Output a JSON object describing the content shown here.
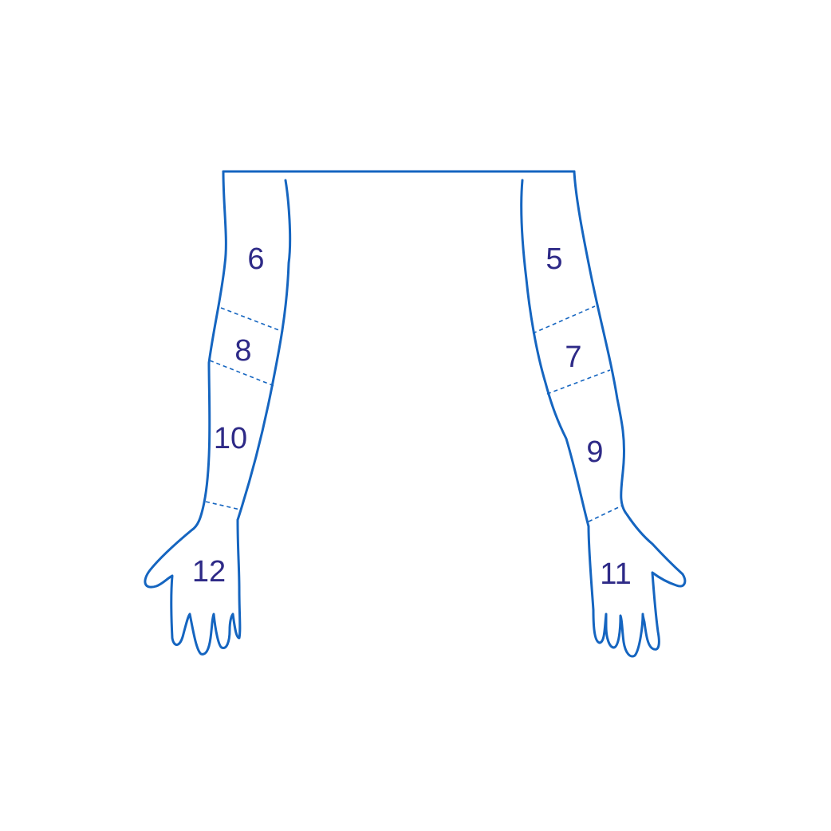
{
  "colors": {
    "outline": "#1565c0",
    "label": "#2e2a87",
    "background": "#ffffff"
  },
  "regions": {
    "r5": "5",
    "r6": "6",
    "r7": "7",
    "r8": "8",
    "r9": "9",
    "r10": "10",
    "r11": "11",
    "r12": "12"
  }
}
